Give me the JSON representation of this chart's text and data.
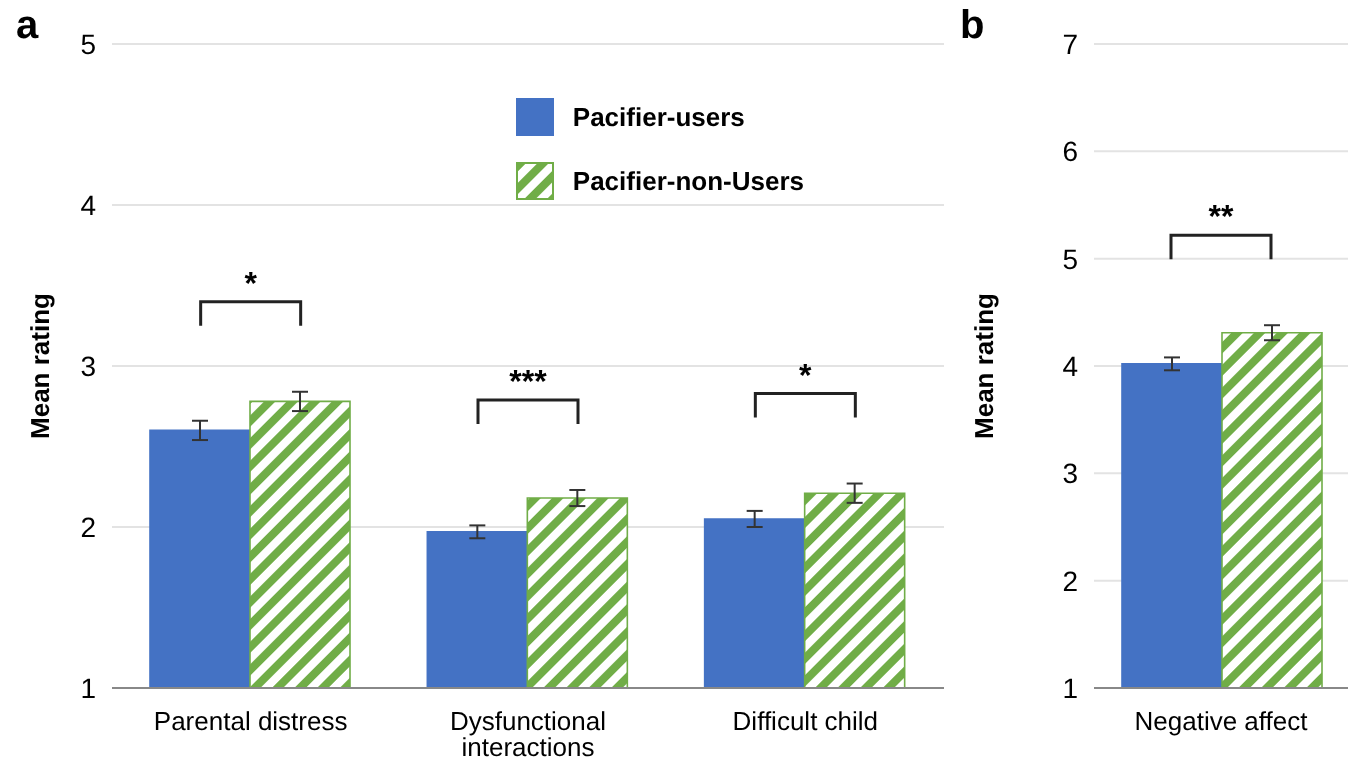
{
  "chart_data": [
    {
      "type": "bar",
      "title": "a",
      "ylabel": "Mean rating",
      "categories": [
        "Parental distress",
        "Dysfunctional interactions",
        "Difficult child"
      ],
      "series": [
        {
          "name": "Pacifier-users",
          "color": "#4472c4",
          "values": [
            2.6,
            1.97,
            2.05
          ],
          "errors": [
            0.06,
            0.04,
            0.05
          ]
        },
        {
          "name": "Pacifier-non-Users",
          "color": "#70ad47",
          "values": [
            2.78,
            2.18,
            2.21
          ],
          "errors": [
            0.06,
            0.05,
            0.06
          ]
        }
      ],
      "ylim": [
        1,
        5
      ],
      "yticks": [
        1,
        2,
        3,
        4,
        5
      ],
      "grid": "y",
      "legend": "top right",
      "annotations": [
        "*",
        "***",
        "*"
      ]
    },
    {
      "type": "bar",
      "title": "b",
      "ylabel": "Mean rating",
      "categories": [
        "Negative affect"
      ],
      "series": [
        {
          "color": "#4472c4",
          "values": [
            4.02
          ],
          "errors": [
            0.06
          ]
        },
        {
          "color": "#70ad47",
          "values": [
            4.31
          ],
          "errors": [
            0.07
          ]
        }
      ],
      "ylim": [
        1,
        7
      ],
      "yticks": [
        1,
        2,
        3,
        4,
        5,
        6,
        7
      ],
      "grid": "y",
      "annotations": [
        "**"
      ]
    }
  ]
}
